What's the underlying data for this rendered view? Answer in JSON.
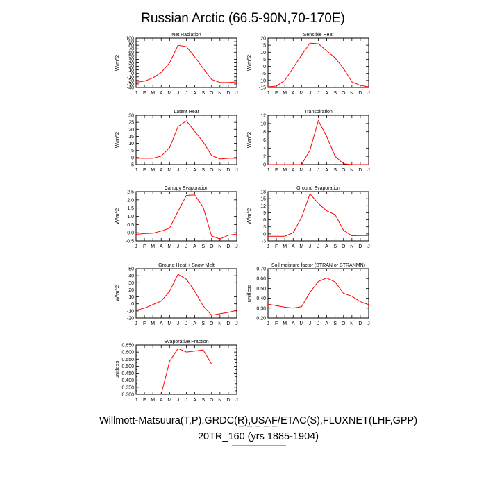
{
  "title": "Russian Arctic (66.5-90N,70-170E)",
  "footer": {
    "line1": "Willmott-Matsuura(T,P),GRDC(R),USAF/ETAC(S),FLUXNET(LHF,GPP)",
    "line2": "20TR_160 (yrs 1885-1904)"
  },
  "colors": {
    "series": "#ff0000",
    "axis": "#000000",
    "legend_dash": "#888888"
  },
  "chart_data": [
    {
      "type": "line",
      "title": "Net Radiation",
      "ylabel": "W/m^2",
      "categories": [
        "J",
        "F",
        "M",
        "A",
        "M",
        "J",
        "J",
        "A",
        "S",
        "O",
        "N",
        "D",
        "J"
      ],
      "values": [
        -25,
        -22,
        -13,
        3,
        30,
        80,
        76,
        47,
        14,
        -17,
        -26,
        -26,
        -24
      ],
      "ylim": [
        -40,
        100
      ],
      "yticks": [
        -40,
        -30,
        -20,
        -10,
        0,
        10,
        20,
        30,
        40,
        50,
        60,
        70,
        80,
        90,
        100
      ],
      "ytick_labels": [
        "-40",
        "-30",
        "-20",
        "-10",
        "0",
        "10",
        "20",
        "30",
        "40",
        "50",
        "60",
        "70",
        "80",
        "90",
        "100"
      ]
    },
    {
      "type": "line",
      "title": "Sensible Heat",
      "ylabel": "W/m^2",
      "categories": [
        "J",
        "F",
        "M",
        "A",
        "M",
        "J",
        "J",
        "A",
        "S",
        "O",
        "N",
        "D",
        "J"
      ],
      "values": [
        -14.5,
        -14,
        -10,
        -1,
        8,
        16.5,
        16,
        11,
        6,
        -1.5,
        -11,
        -13.5,
        -14.5
      ],
      "ylim": [
        -15,
        20
      ],
      "yticks": [
        -15,
        -10,
        -5,
        0,
        5,
        10,
        15,
        20
      ],
      "ytick_labels": [
        "-15",
        "-10",
        "-5",
        "0",
        "5",
        "10",
        "15",
        "20"
      ]
    },
    {
      "type": "line",
      "title": "Latent Heat",
      "ylabel": "W/m^2",
      "categories": [
        "J",
        "F",
        "M",
        "A",
        "M",
        "J",
        "J",
        "A",
        "S",
        "O",
        "N",
        "D",
        "J"
      ],
      "values": [
        -0.5,
        -0.5,
        -0.5,
        1,
        7,
        22,
        26,
        18.5,
        11,
        1.5,
        -1,
        -0.5,
        -0.5
      ],
      "ylim": [
        -5,
        30
      ],
      "yticks": [
        -5,
        0,
        5,
        10,
        15,
        20,
        25,
        30
      ],
      "ytick_labels": [
        "-5",
        "0",
        "5",
        "10",
        "15",
        "20",
        "25",
        "30"
      ]
    },
    {
      "type": "line",
      "title": "Transpiration",
      "ylabel": "W/m^2",
      "categories": [
        "J",
        "F",
        "M",
        "A",
        "M",
        "J",
        "J",
        "A",
        "S",
        "O",
        "N",
        "D",
        "J"
      ],
      "values": [
        0,
        0,
        0,
        0,
        0,
        3.5,
        10.7,
        6.8,
        2,
        0.2,
        0,
        0,
        0
      ],
      "ylim": [
        0,
        12
      ],
      "yticks": [
        0,
        2,
        4,
        6,
        8,
        10,
        12
      ],
      "ytick_labels": [
        "0",
        "2",
        "4",
        "6",
        "8",
        "10",
        "12"
      ]
    },
    {
      "type": "line",
      "title": "Canopy Evaporation",
      "ylabel": "W/m^2",
      "categories": [
        "J",
        "F",
        "M",
        "A",
        "M",
        "J",
        "J",
        "A",
        "S",
        "O",
        "N",
        "D",
        "J"
      ],
      "values": [
        -0.1,
        -0.05,
        -0.03,
        0.1,
        0.28,
        1.3,
        2.27,
        2.3,
        1.55,
        -0.2,
        -0.38,
        -0.15,
        -0.08
      ],
      "ylim": [
        -0.5,
        2.5
      ],
      "yticks": [
        -0.5,
        0,
        0.5,
        1,
        1.5,
        2,
        2.5
      ],
      "ytick_labels": [
        "-0.5",
        "0.0",
        "0.5",
        "1.0",
        "1.5",
        "2.0",
        "2.5"
      ]
    },
    {
      "type": "line",
      "title": "Ground Evaporation",
      "ylabel": "W/m^2",
      "categories": [
        "J",
        "F",
        "M",
        "A",
        "M",
        "J",
        "J",
        "A",
        "S",
        "O",
        "N",
        "D",
        "J"
      ],
      "values": [
        -1,
        -1,
        -1,
        0.5,
        7,
        17,
        13,
        9.8,
        8.2,
        1.5,
        -0.8,
        -0.7,
        -0.7
      ],
      "ylim": [
        -3,
        18
      ],
      "yticks": [
        -3,
        0,
        3,
        6,
        9,
        12,
        15,
        18
      ],
      "ytick_labels": [
        "-3",
        "0",
        "3",
        "6",
        "9",
        "12",
        "15",
        "18"
      ]
    },
    {
      "type": "line",
      "title": "Ground Heat + Snow Melt",
      "ylabel": "W/m^2",
      "categories": [
        "J",
        "F",
        "M",
        "A",
        "M",
        "J",
        "J",
        "A",
        "S",
        "O",
        "N",
        "D",
        "J"
      ],
      "values": [
        -9,
        -6,
        -1,
        4,
        18,
        42,
        35,
        18,
        -3,
        -16,
        -14,
        -12,
        -9
      ],
      "ylim": [
        -20,
        50
      ],
      "yticks": [
        -20,
        -10,
        0,
        10,
        20,
        30,
        40,
        50
      ],
      "ytick_labels": [
        "-20",
        "-10",
        "0",
        "10",
        "20",
        "30",
        "40",
        "50"
      ]
    },
    {
      "type": "line",
      "title": "Soil moisture factor (BTRAN or BTRANMN)",
      "ylabel": "unitless",
      "categories": [
        "J",
        "F",
        "M",
        "A",
        "M",
        "J",
        "J",
        "A",
        "S",
        "O",
        "N",
        "D",
        "J"
      ],
      "values": [
        0.34,
        0.325,
        0.31,
        0.3,
        0.315,
        0.46,
        0.57,
        0.605,
        0.565,
        0.45,
        0.42,
        0.365,
        0.335
      ],
      "ylim": [
        0.2,
        0.7
      ],
      "yticks": [
        0.2,
        0.3,
        0.4,
        0.5,
        0.6,
        0.7
      ],
      "ytick_labels": [
        "0.20",
        "0.30",
        "0.40",
        "0.50",
        "0.60",
        "0.70"
      ]
    },
    {
      "type": "line",
      "title": "Evaporative Fraction",
      "ylabel": "unitless",
      "categories": [
        "J",
        "F",
        "M",
        "A",
        "M",
        "J",
        "J",
        "A",
        "S",
        "O",
        "N",
        "D",
        "J"
      ],
      "values": [
        null,
        null,
        null,
        0.3,
        0.535,
        0.625,
        0.6,
        0.607,
        0.615,
        0.515,
        null,
        null,
        null
      ],
      "ylim": [
        0.3,
        0.65
      ],
      "yticks": [
        0.3,
        0.325,
        0.35,
        0.375,
        0.4,
        0.425,
        0.45,
        0.475,
        0.5,
        0.525,
        0.55,
        0.575,
        0.6,
        0.625,
        0.65
      ],
      "ytick_labels": [
        "0.300",
        "",
        "0.350",
        "",
        "0.400",
        "",
        "0.450",
        "",
        "0.500",
        "",
        "0.550",
        "",
        "0.600",
        "",
        "0.650"
      ]
    }
  ]
}
